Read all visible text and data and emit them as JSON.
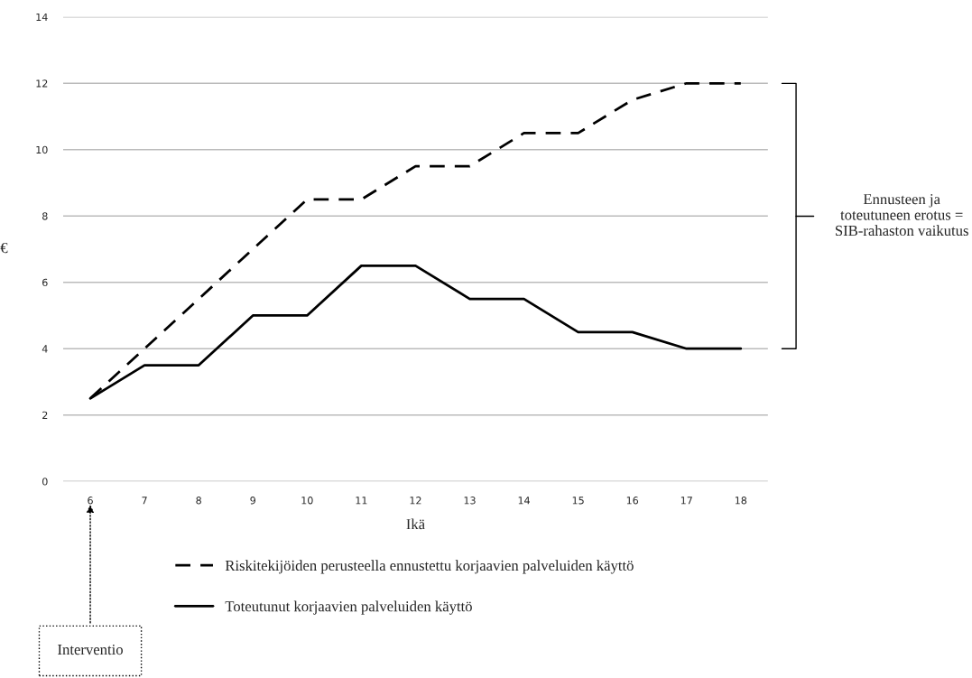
{
  "chart_data": {
    "type": "line",
    "xlabel": "Ikä",
    "ylabel": "€",
    "categories": [
      "6",
      "7",
      "8",
      "9",
      "10",
      "11",
      "12",
      "13",
      "14",
      "15",
      "16",
      "17",
      "18"
    ],
    "series": [
      {
        "name": "Riskitekijöiden perusteella ennustettu korjaavien palveluiden käyttö",
        "color": "#000000",
        "line_style": "dashed",
        "values": [
          2.5,
          4,
          5.5,
          7,
          8.5,
          8.5,
          9.5,
          9.5,
          10.5,
          10.5,
          11.5,
          12,
          12
        ]
      },
      {
        "name": "Toteutunut korjaavien palveluiden käyttö",
        "color": "#000000",
        "line_style": "solid",
        "values": [
          2.5,
          3.5,
          3.5,
          5,
          5,
          6.5,
          6.5,
          5.5,
          5.5,
          4.5,
          4.5,
          4,
          4
        ]
      }
    ],
    "ylim": [
      0,
      14
    ],
    "yticks": [
      0,
      2,
      4,
      6,
      8,
      10,
      12,
      14
    ],
    "grid": "y",
    "legend": "bottom",
    "marker": "none",
    "annotations": [
      "Ennusteen ja toteutuneen erotus = SIB-rahaston vaikutus",
      "Interventio"
    ]
  }
}
